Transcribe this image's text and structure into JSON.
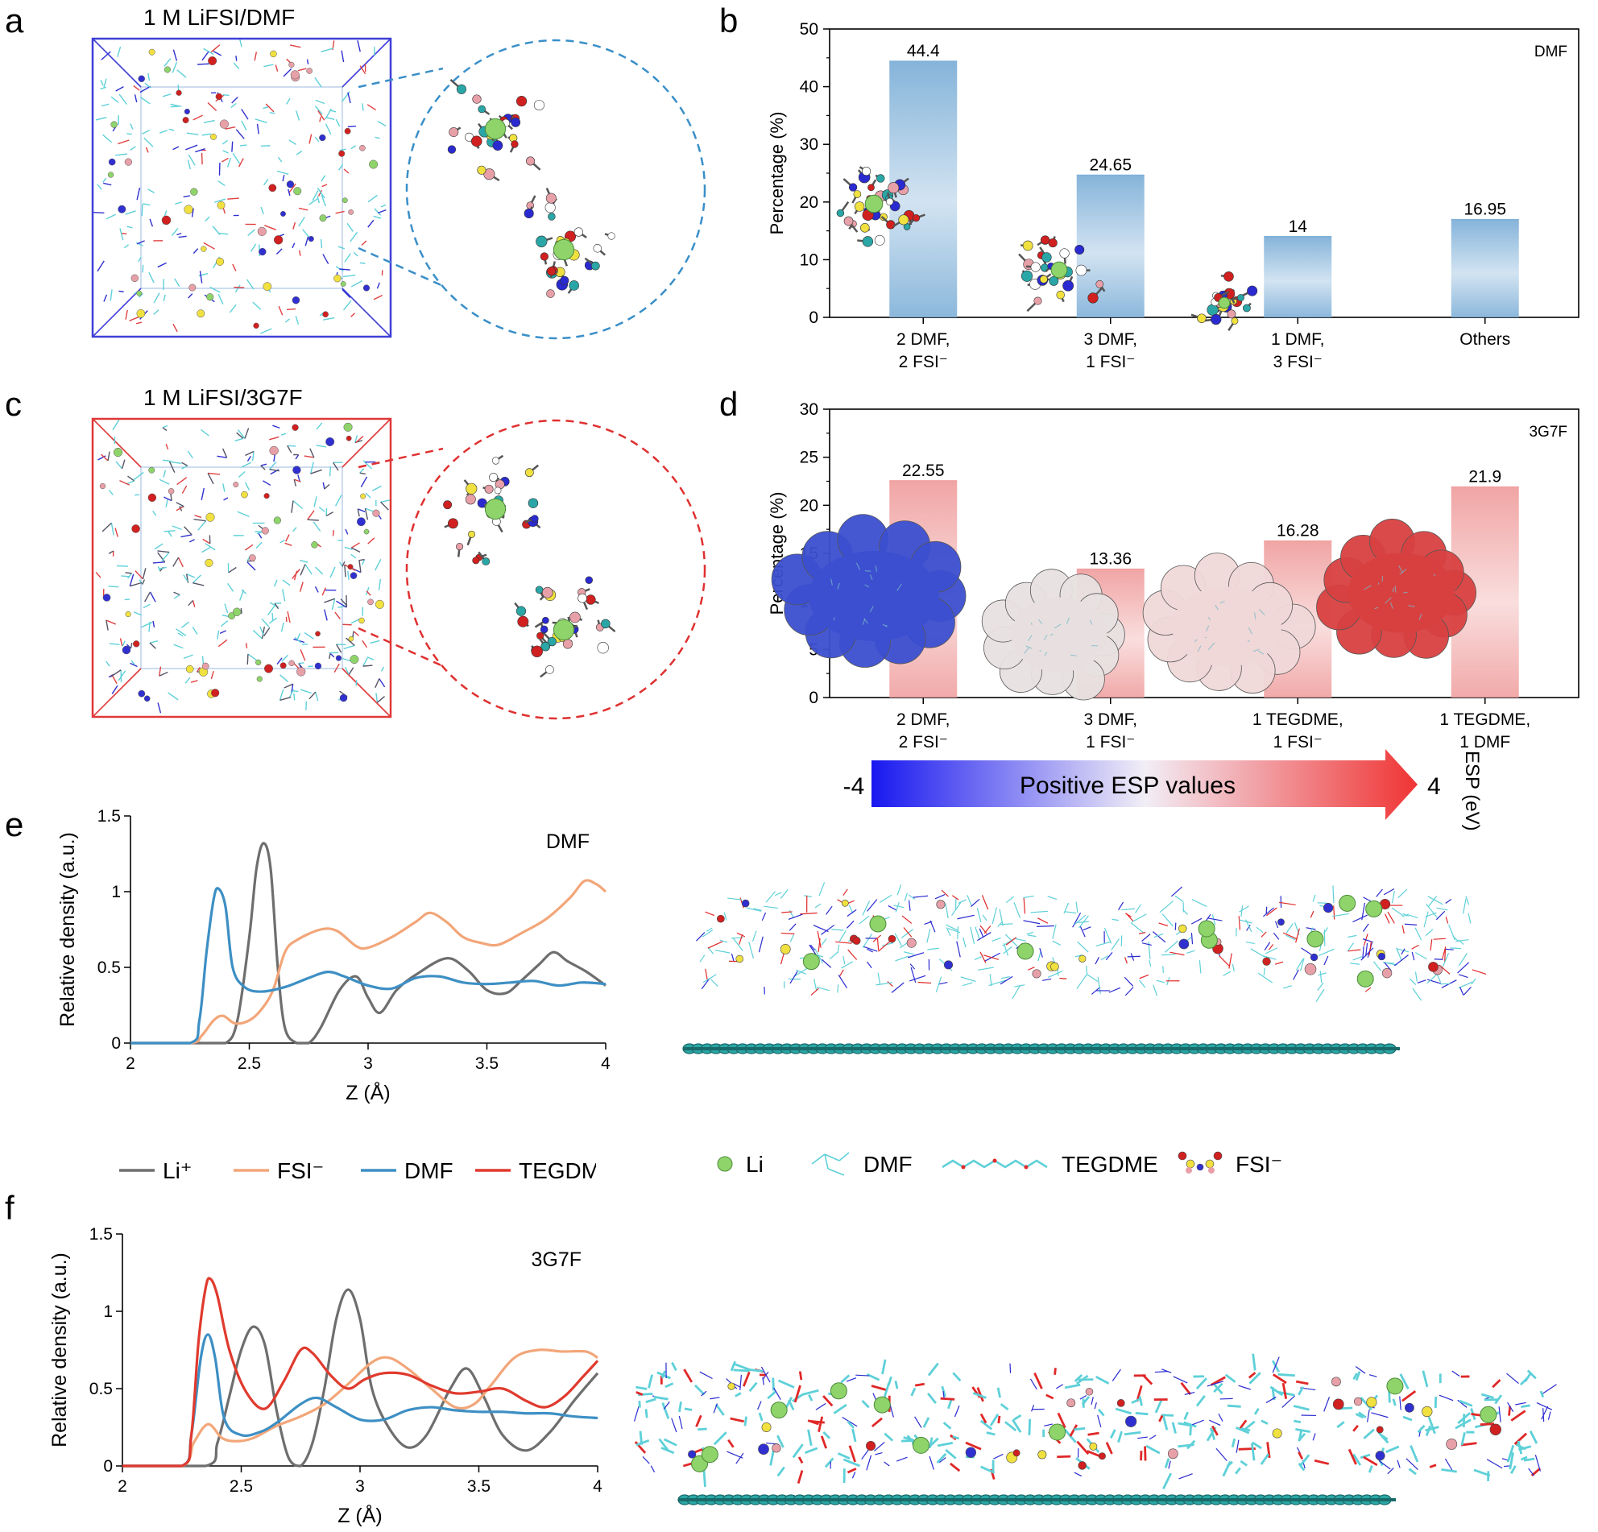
{
  "panels": {
    "a": {
      "label": "a",
      "title": "1 M LiFSI/DMF"
    },
    "b": {
      "label": "b"
    },
    "c": {
      "label": "c",
      "title": "1 M LiFSI/3G7F"
    },
    "d": {
      "label": "d"
    },
    "e": {
      "label": "e"
    },
    "f": {
      "label": "f"
    }
  },
  "colors": {
    "box_dmf": "#3f3fd8",
    "box_3g7f": "#e03838",
    "zoom_dmf": "#3a8fc8",
    "zoom_3g7f": "#e03030",
    "li": "#8fd46a",
    "dmf": "#5ed0d8",
    "tegdme": "#e02828",
    "fsi_s": "#f0e040",
    "graphene": "#2aa6a6",
    "curve_li": "#6e6e6e",
    "curve_fsi": "#f2a679",
    "curve_dmf": "#3d8fc4",
    "curve_tegdme": "#e03a2e"
  },
  "chart_data": [
    {
      "id": "b",
      "type": "bar",
      "annotation": "DMF",
      "categories": [
        [
          "2 DMF,",
          "2 FSI⁻"
        ],
        [
          "3 DMF,",
          "1 FSI⁻"
        ],
        [
          "1 DMF,",
          "3 FSI⁻"
        ],
        [
          "Others"
        ]
      ],
      "values": [
        44.4,
        24.65,
        14,
        16.95
      ],
      "value_labels": [
        "44.4",
        "24.65",
        "14",
        "16.95"
      ],
      "ylabel": "Percentage (%)",
      "ylim": [
        0,
        50
      ],
      "yticks": [
        0,
        10,
        20,
        30,
        40,
        50
      ],
      "bar_color": "#7fb0d8"
    },
    {
      "id": "d",
      "type": "bar",
      "annotation": "3G7F",
      "categories": [
        [
          "2 DMF,",
          "2 FSI⁻"
        ],
        [
          "3 DMF,",
          "1 FSI⁻"
        ],
        [
          "1 TEGDME,",
          "1 FSI⁻"
        ],
        [
          "1 TEGDME,",
          "1 DMF"
        ]
      ],
      "values": [
        22.55,
        13.36,
        16.28,
        21.9
      ],
      "value_labels": [
        "22.55",
        "13.36",
        "16.28",
        "21.9"
      ],
      "ylabel": "Percentage (%)",
      "ylim": [
        0,
        30
      ],
      "yticks": [
        0,
        5,
        10,
        15,
        20,
        25,
        30
      ],
      "bar_color": "#f0a0a0",
      "esp_colors": [
        "#3b4fd0",
        "#e8e0e0",
        "#f0d8d8",
        "#d84040"
      ]
    },
    {
      "id": "e",
      "type": "line",
      "annotation": "DMF",
      "xlabel": "Z (Å)",
      "ylabel": "Relative density (a.u.)",
      "xlim": [
        2,
        4
      ],
      "ylim": [
        0,
        1.5
      ],
      "xticks": [
        2,
        2.5,
        3,
        3.5,
        4
      ],
      "yticks": [
        0,
        0.5,
        1,
        1.5
      ],
      "series": [
        {
          "name": "Li⁺",
          "color": "#6e6e6e",
          "points": [
            [
              2,
              0
            ],
            [
              2.3,
              0
            ],
            [
              2.4,
              0
            ],
            [
              2.45,
              0.15
            ],
            [
              2.5,
              0.7
            ],
            [
              2.53,
              1.15
            ],
            [
              2.56,
              1.32
            ],
            [
              2.59,
              1.15
            ],
            [
              2.62,
              0.5
            ],
            [
              2.65,
              0.1
            ],
            [
              2.7,
              0
            ],
            [
              2.75,
              0
            ],
            [
              2.8,
              0.1
            ],
            [
              2.88,
              0.35
            ],
            [
              2.95,
              0.44
            ],
            [
              3.0,
              0.3
            ],
            [
              3.05,
              0.2
            ],
            [
              3.12,
              0.35
            ],
            [
              3.2,
              0.45
            ],
            [
              3.33,
              0.56
            ],
            [
              3.42,
              0.48
            ],
            [
              3.5,
              0.35
            ],
            [
              3.58,
              0.33
            ],
            [
              3.65,
              0.42
            ],
            [
              3.72,
              0.52
            ],
            [
              3.78,
              0.6
            ],
            [
              3.84,
              0.54
            ],
            [
              3.92,
              0.47
            ],
            [
              4.0,
              0.38
            ]
          ]
        },
        {
          "name": "FSI⁻",
          "color": "#f2a679",
          "points": [
            [
              2,
              0
            ],
            [
              2.25,
              0
            ],
            [
              2.3,
              0.05
            ],
            [
              2.35,
              0.15
            ],
            [
              2.39,
              0.18
            ],
            [
              2.44,
              0.13
            ],
            [
              2.5,
              0.15
            ],
            [
              2.55,
              0.22
            ],
            [
              2.6,
              0.35
            ],
            [
              2.65,
              0.6
            ],
            [
              2.7,
              0.68
            ],
            [
              2.8,
              0.75
            ],
            [
              2.87,
              0.74
            ],
            [
              2.95,
              0.64
            ],
            [
              3.0,
              0.63
            ],
            [
              3.1,
              0.7
            ],
            [
              3.2,
              0.8
            ],
            [
              3.26,
              0.86
            ],
            [
              3.33,
              0.8
            ],
            [
              3.4,
              0.7
            ],
            [
              3.48,
              0.66
            ],
            [
              3.55,
              0.65
            ],
            [
              3.65,
              0.73
            ],
            [
              3.75,
              0.82
            ],
            [
              3.85,
              0.96
            ],
            [
              3.91,
              1.07
            ],
            [
              3.96,
              1.05
            ],
            [
              4.0,
              1.0
            ]
          ]
        },
        {
          "name": "DMF",
          "color": "#3d8fc4",
          "points": [
            [
              2,
              0
            ],
            [
              2.25,
              0
            ],
            [
              2.29,
              0.15
            ],
            [
              2.32,
              0.6
            ],
            [
              2.35,
              0.95
            ],
            [
              2.37,
              1.02
            ],
            [
              2.4,
              0.9
            ],
            [
              2.43,
              0.5
            ],
            [
              2.48,
              0.37
            ],
            [
              2.55,
              0.34
            ],
            [
              2.65,
              0.37
            ],
            [
              2.75,
              0.43
            ],
            [
              2.83,
              0.47
            ],
            [
              2.9,
              0.44
            ],
            [
              3.0,
              0.38
            ],
            [
              3.1,
              0.36
            ],
            [
              3.2,
              0.43
            ],
            [
              3.3,
              0.44
            ],
            [
              3.4,
              0.4
            ],
            [
              3.5,
              0.39
            ],
            [
              3.6,
              0.4
            ],
            [
              3.7,
              0.41
            ],
            [
              3.8,
              0.38
            ],
            [
              3.9,
              0.4
            ],
            [
              4.0,
              0.39
            ]
          ]
        }
      ]
    },
    {
      "id": "f",
      "type": "line",
      "annotation": "3G7F",
      "xlabel": "Z (Å)",
      "ylabel": "Relative density (a.u.)",
      "xlim": [
        2,
        4
      ],
      "ylim": [
        0,
        1.5
      ],
      "xticks": [
        2,
        2.5,
        3,
        3.5,
        4
      ],
      "yticks": [
        0,
        0.5,
        1,
        1.5
      ],
      "series": [
        {
          "name": "Li⁺",
          "color": "#6e6e6e",
          "points": [
            [
              2,
              0
            ],
            [
              2.35,
              0
            ],
            [
              2.4,
              0.15
            ],
            [
              2.45,
              0.45
            ],
            [
              2.5,
              0.75
            ],
            [
              2.55,
              0.9
            ],
            [
              2.6,
              0.78
            ],
            [
              2.65,
              0.35
            ],
            [
              2.7,
              0.05
            ],
            [
              2.75,
              0
            ],
            [
              2.8,
              0.15
            ],
            [
              2.85,
              0.5
            ],
            [
              2.9,
              0.95
            ],
            [
              2.95,
              1.14
            ],
            [
              3.0,
              0.95
            ],
            [
              3.05,
              0.5
            ],
            [
              3.12,
              0.25
            ],
            [
              3.2,
              0.12
            ],
            [
              3.28,
              0.2
            ],
            [
              3.38,
              0.5
            ],
            [
              3.45,
              0.63
            ],
            [
              3.52,
              0.45
            ],
            [
              3.6,
              0.2
            ],
            [
              3.7,
              0.1
            ],
            [
              3.8,
              0.22
            ],
            [
              3.9,
              0.42
            ],
            [
              4.0,
              0.6
            ]
          ]
        },
        {
          "name": "FSI⁻",
          "color": "#f2a679",
          "points": [
            [
              2,
              0
            ],
            [
              2.25,
              0
            ],
            [
              2.3,
              0.15
            ],
            [
              2.36,
              0.27
            ],
            [
              2.42,
              0.18
            ],
            [
              2.48,
              0.16
            ],
            [
              2.55,
              0.18
            ],
            [
              2.65,
              0.26
            ],
            [
              2.75,
              0.32
            ],
            [
              2.85,
              0.4
            ],
            [
              2.95,
              0.53
            ],
            [
              3.05,
              0.67
            ],
            [
              3.12,
              0.7
            ],
            [
              3.2,
              0.63
            ],
            [
              3.3,
              0.5
            ],
            [
              3.4,
              0.38
            ],
            [
              3.48,
              0.4
            ],
            [
              3.55,
              0.52
            ],
            [
              3.65,
              0.7
            ],
            [
              3.75,
              0.75
            ],
            [
              3.85,
              0.74
            ],
            [
              3.95,
              0.74
            ],
            [
              4.0,
              0.7
            ]
          ]
        },
        {
          "name": "DMF",
          "color": "#3d8fc4",
          "points": [
            [
              2,
              0
            ],
            [
              2.25,
              0
            ],
            [
              2.29,
              0.2
            ],
            [
              2.33,
              0.7
            ],
            [
              2.36,
              0.85
            ],
            [
              2.39,
              0.7
            ],
            [
              2.43,
              0.3
            ],
            [
              2.5,
              0.2
            ],
            [
              2.58,
              0.22
            ],
            [
              2.65,
              0.28
            ],
            [
              2.75,
              0.4
            ],
            [
              2.82,
              0.44
            ],
            [
              2.9,
              0.38
            ],
            [
              3.0,
              0.3
            ],
            [
              3.1,
              0.3
            ],
            [
              3.2,
              0.36
            ],
            [
              3.3,
              0.38
            ],
            [
              3.4,
              0.36
            ],
            [
              3.5,
              0.35
            ],
            [
              3.6,
              0.35
            ],
            [
              3.7,
              0.34
            ],
            [
              3.8,
              0.34
            ],
            [
              3.9,
              0.32
            ],
            [
              4.0,
              0.31
            ]
          ]
        },
        {
          "name": "TEGDME",
          "color": "#e03a2e",
          "points": [
            [
              2,
              0
            ],
            [
              2.25,
              0
            ],
            [
              2.29,
              0.2
            ],
            [
              2.32,
              0.8
            ],
            [
              2.35,
              1.15
            ],
            [
              2.37,
              1.21
            ],
            [
              2.4,
              1.1
            ],
            [
              2.45,
              0.75
            ],
            [
              2.52,
              0.48
            ],
            [
              2.6,
              0.37
            ],
            [
              2.68,
              0.55
            ],
            [
              2.75,
              0.75
            ],
            [
              2.8,
              0.73
            ],
            [
              2.88,
              0.58
            ],
            [
              2.95,
              0.5
            ],
            [
              3.02,
              0.56
            ],
            [
              3.1,
              0.6
            ],
            [
              3.2,
              0.59
            ],
            [
              3.3,
              0.52
            ],
            [
              3.4,
              0.47
            ],
            [
              3.5,
              0.48
            ],
            [
              3.6,
              0.5
            ],
            [
              3.7,
              0.42
            ],
            [
              3.78,
              0.38
            ],
            [
              3.86,
              0.45
            ],
            [
              3.94,
              0.58
            ],
            [
              4.0,
              0.68
            ]
          ]
        }
      ]
    }
  ],
  "esp_bar": {
    "min_label": "-4",
    "max_label": "4",
    "text": "Positive ESP values",
    "unit_label": "ESP (eV)"
  },
  "legend_curves": [
    {
      "name": "Li⁺",
      "color": "#6e6e6e"
    },
    {
      "name": "FSI⁻",
      "color": "#f2a679"
    },
    {
      "name": "DMF",
      "color": "#3d8fc4"
    },
    {
      "name": "TEGDME",
      "color": "#e03a2e"
    }
  ],
  "legend_molecules": [
    {
      "name": "Li",
      "kind": "li"
    },
    {
      "name": "DMF",
      "kind": "dmf"
    },
    {
      "name": "TEGDME",
      "kind": "tegdme"
    },
    {
      "name": "FSI⁻",
      "kind": "fsi"
    }
  ]
}
